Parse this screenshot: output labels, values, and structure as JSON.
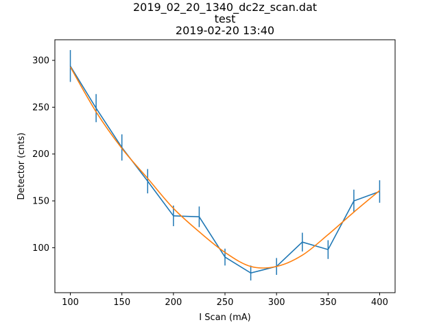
{
  "chart_data": {
    "type": "line",
    "title_lines": [
      "2019_02_20_1340_dc2z_scan.dat",
      "test",
      "2019-02-20 13:40"
    ],
    "xlabel": "I Scan (mA)",
    "ylabel": "Detector (cnts)",
    "xlim": [
      85,
      415
    ],
    "ylim": [
      52,
      322
    ],
    "xticks": [
      100,
      150,
      200,
      250,
      300,
      350,
      400
    ],
    "yticks": [
      100,
      150,
      200,
      250,
      300
    ],
    "grid": false,
    "legend": "none",
    "series": [
      {
        "kind": "errorbar-line",
        "color": "#1f77b4",
        "x": [
          100,
          125,
          150,
          175,
          200,
          225,
          250,
          275,
          300,
          325,
          350,
          375,
          400
        ],
        "y": [
          294,
          249,
          207,
          171,
          134,
          133,
          90,
          73,
          80,
          106,
          98,
          150,
          160
        ],
        "err": [
          17,
          15,
          14,
          13,
          11,
          11,
          9,
          8,
          9,
          10,
          10,
          12,
          12
        ]
      },
      {
        "kind": "fit-curve",
        "color": "#ff7f0e",
        "x": [
          100,
          125,
          150,
          175,
          200,
          225,
          250,
          275,
          300,
          325,
          350,
          375,
          400
        ],
        "y": [
          293,
          245,
          206,
          174,
          142,
          117,
          95,
          80,
          80,
          92,
          114,
          138,
          161
        ]
      }
    ]
  }
}
